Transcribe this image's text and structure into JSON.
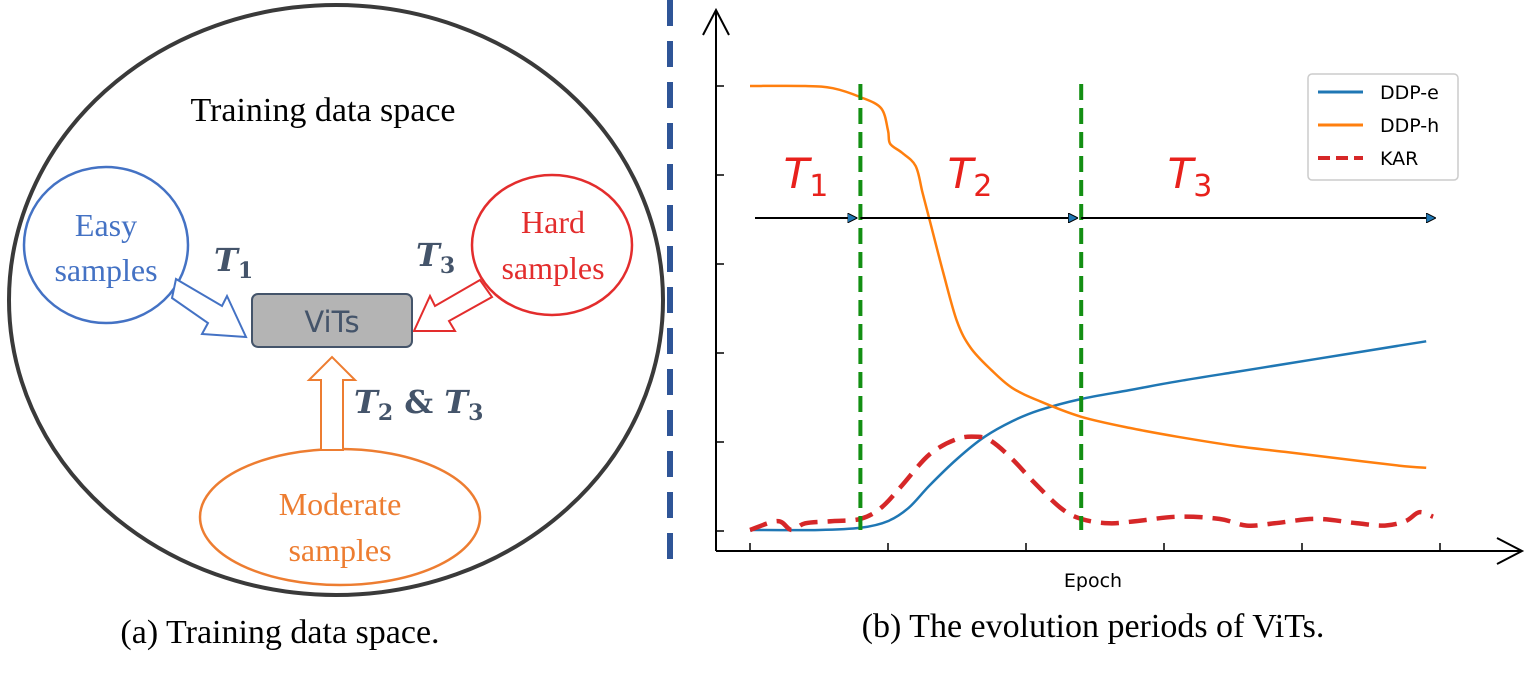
{
  "left_panel": {
    "title": "Training data space",
    "caption": "(a) Training data space.",
    "center_label": "ViTs",
    "easy": {
      "line1": "Easy",
      "line2": "samples",
      "color": "#4472c4"
    },
    "hard": {
      "line1": "Hard",
      "line2": "samples",
      "color": "#e32d2d"
    },
    "moderate": {
      "line1": "Moderate",
      "line2": "samples",
      "color": "#ed7d31"
    },
    "arrow_labels": {
      "easy": {
        "sym": "T",
        "sub": "1"
      },
      "hard": {
        "sym": "T",
        "sub": "3"
      },
      "moderate": {
        "sym1": "T",
        "sub1": "2",
        "amp": " & ",
        "sym2": "T",
        "sub2": "3"
      }
    },
    "label_color": "#44546a",
    "box_fill": "#b4b4b4",
    "box_stroke": "#44546a"
  },
  "divider_color": "#2f5597",
  "chart_data": {
    "type": "line",
    "caption": "(b) The evolution periods of ViTs.",
    "xlabel": "Epoch",
    "ylabel": "",
    "xlim": [
      0,
      100
    ],
    "ylim": [
      0,
      1
    ],
    "grid": false,
    "legend_position": "top-right",
    "period_boundaries": [
      16,
      48
    ],
    "periods": [
      {
        "sym": "T",
        "sub": "1"
      },
      {
        "sym": "T",
        "sub": "2"
      },
      {
        "sym": "T",
        "sub": "3"
      }
    ],
    "series": [
      {
        "name": "DDP-e",
        "color": "#1f77b4",
        "style": "solid",
        "x": [
          0,
          10,
          16,
          20,
          23,
          26,
          30,
          34,
          38,
          42,
          48,
          55,
          62,
          70,
          78,
          86,
          94,
          98
        ],
        "y": [
          0.0,
          0.0,
          0.005,
          0.02,
          0.05,
          0.1,
          0.16,
          0.21,
          0.245,
          0.27,
          0.295,
          0.315,
          0.335,
          0.355,
          0.375,
          0.395,
          0.415,
          0.425
        ]
      },
      {
        "name": "DDP-h",
        "color": "#ff7f0e",
        "style": "solid",
        "x": [
          0,
          8,
          12,
          16,
          19,
          20,
          20.3,
          22,
          24,
          25,
          26,
          28,
          30,
          32,
          35,
          38,
          42,
          48,
          55,
          62,
          70,
          78,
          86,
          94,
          98
        ],
        "y": [
          1.0,
          1.0,
          0.995,
          0.975,
          0.95,
          0.9,
          0.87,
          0.85,
          0.82,
          0.76,
          0.7,
          0.58,
          0.47,
          0.41,
          0.36,
          0.32,
          0.29,
          0.255,
          0.23,
          0.21,
          0.19,
          0.175,
          0.16,
          0.145,
          0.14
        ]
      },
      {
        "name": "KAR",
        "color": "#d62728",
        "style": "dashed",
        "x": [
          0,
          4,
          6,
          8,
          12,
          16,
          19,
          22,
          26,
          30,
          33,
          35,
          38,
          41,
          45,
          48,
          52,
          56,
          62,
          68,
          72,
          76,
          82,
          88,
          92,
          95,
          97,
          99
        ],
        "y": [
          0.0,
          0.02,
          0.0,
          0.015,
          0.02,
          0.025,
          0.05,
          0.1,
          0.17,
          0.205,
          0.21,
          0.2,
          0.16,
          0.11,
          0.05,
          0.025,
          0.015,
          0.02,
          0.03,
          0.025,
          0.01,
          0.015,
          0.025,
          0.015,
          0.01,
          0.02,
          0.04,
          0.03
        ]
      }
    ]
  }
}
